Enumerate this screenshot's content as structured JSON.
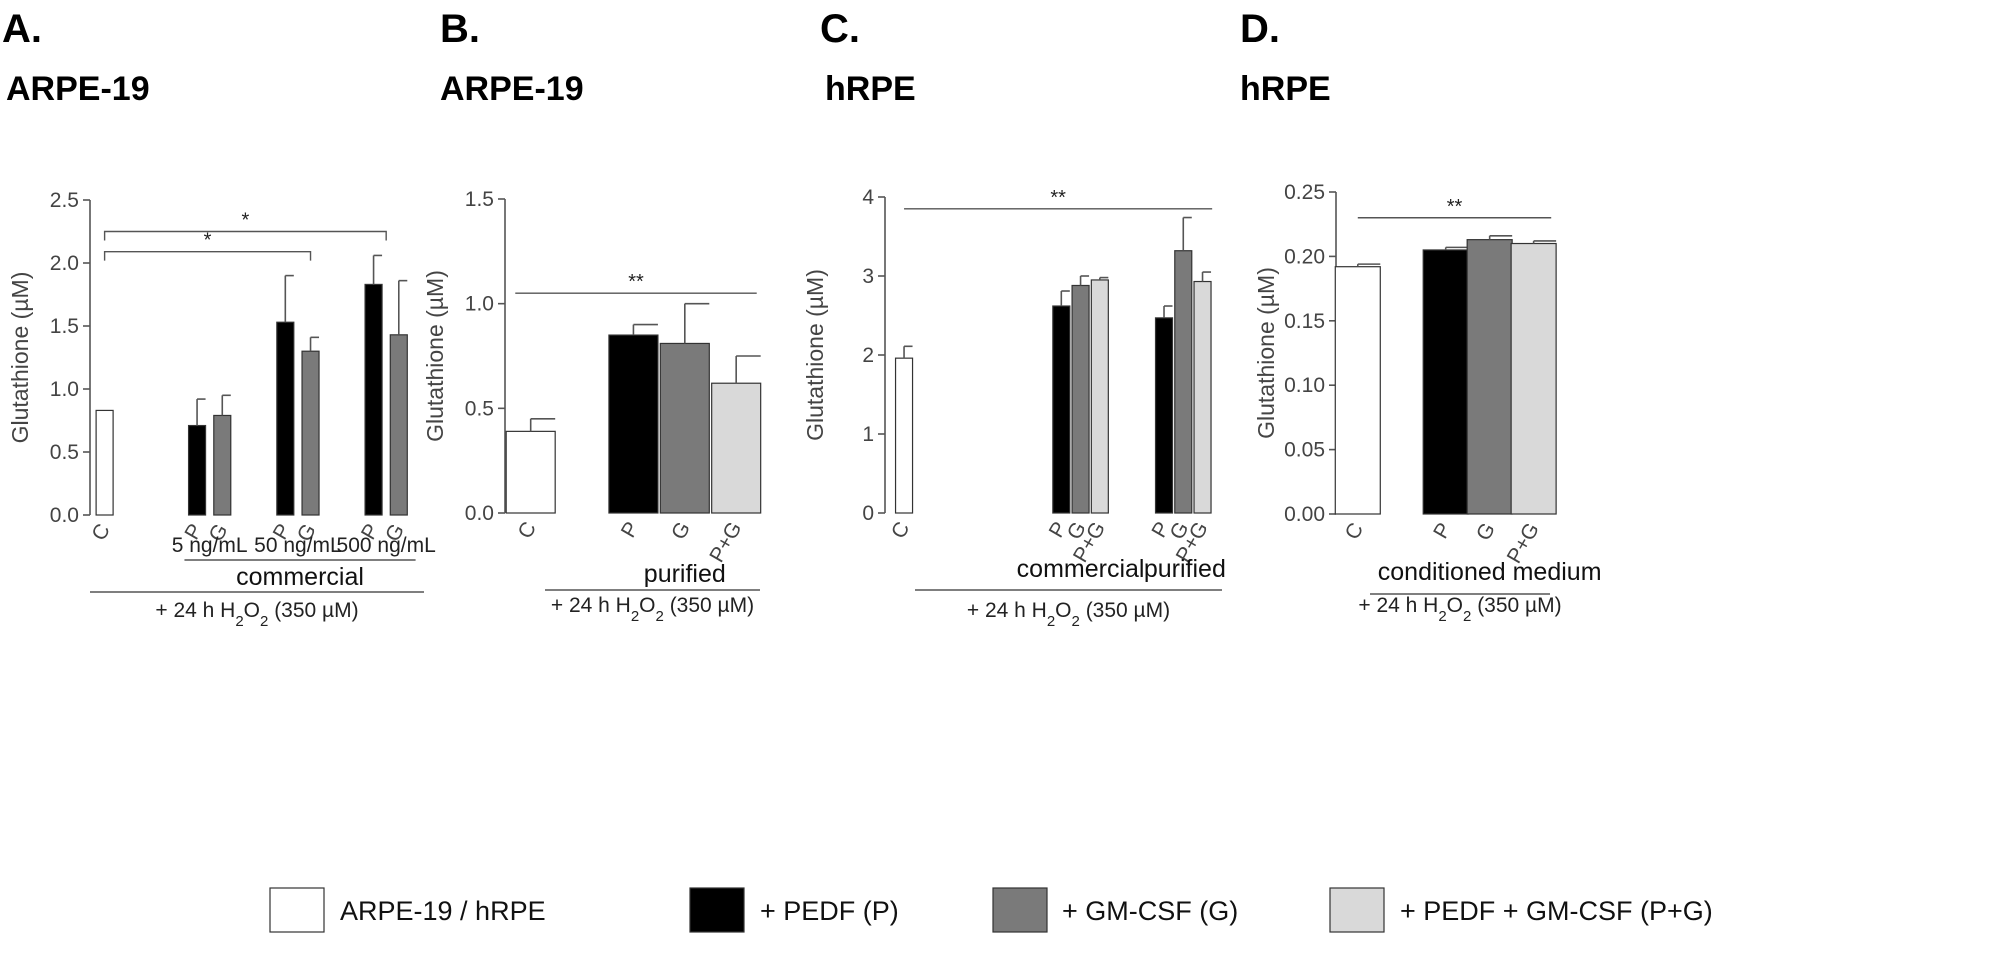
{
  "colors": {
    "control": "#ffffff",
    "pedf": "#000000",
    "gmcsf": "#7a7a7a",
    "combo": "#d9d9d9",
    "axis": "#555555",
    "error": "#555555"
  },
  "legend": [
    {
      "key": "control",
      "label": "ARPE-19 / hRPE"
    },
    {
      "key": "pedf",
      "label": "+ PEDF (P)"
    },
    {
      "key": "gmcsf",
      "label": "+ GM-CSF (G)"
    },
    {
      "key": "combo",
      "label": "+ PEDF + GM-CSF (P+G)"
    }
  ],
  "treatment_label": {
    "prefix": "+ 24 h H",
    "sub1": "2",
    "mid": "O",
    "sub2": "2",
    "suffix": " (350 µM)"
  },
  "chart_data": [
    {
      "panel": "A.",
      "title": "ARPE-19",
      "type": "bar",
      "ylabel": {
        "pre": "Glutathione (",
        "mu": "µ",
        "post": "M)"
      },
      "ylim": [
        0,
        2.5
      ],
      "yticks": [
        "0.0",
        "0.5",
        "1.0",
        "1.5",
        "2.0",
        "2.5"
      ],
      "bars": [
        {
          "label": "C",
          "value": 0.83,
          "error": 0.0,
          "color": "control",
          "x": 0
        },
        {
          "label": "P",
          "value": 0.71,
          "error": 0.21,
          "color": "pedf",
          "x": 2.2
        },
        {
          "label": "G",
          "value": 0.79,
          "error": 0.16,
          "color": "gmcsf",
          "x": 2.8
        },
        {
          "label": "P",
          "value": 1.53,
          "error": 0.37,
          "color": "pedf",
          "x": 4.3
        },
        {
          "label": "G",
          "value": 1.3,
          "error": 0.11,
          "color": "gmcsf",
          "x": 4.9
        },
        {
          "label": "P",
          "value": 1.83,
          "error": 0.23,
          "color": "pedf",
          "x": 6.4
        },
        {
          "label": "G",
          "value": 1.43,
          "error": 0.43,
          "color": "gmcsf",
          "x": 7.0
        }
      ],
      "dose_labels": [
        {
          "text": "5 ng/mL",
          "x": 2.5
        },
        {
          "text": "50 ng/mL",
          "x": 4.6
        },
        {
          "text": "500 ng/mL",
          "x": 6.7
        }
      ],
      "groups": [
        {
          "text": "commercial",
          "x0": 1.9,
          "x1": 7.4
        }
      ],
      "significance": [
        {
          "x0": 0,
          "x1": 4.9,
          "y": 2.09,
          "text": "*"
        },
        {
          "x0": 0,
          "x1": 6.7,
          "y": 2.25,
          "text": "*"
        }
      ]
    },
    {
      "panel": "B.",
      "title": "ARPE-19",
      "type": "bar",
      "ylabel": {
        "pre": "Glutathione (",
        "mu": "µ",
        "post": "M)"
      },
      "ylim": [
        0,
        1.5
      ],
      "yticks": [
        "0.0",
        "0.5",
        "1.0",
        "1.5"
      ],
      "bars": [
        {
          "label": "C",
          "value": 0.39,
          "error": 0.06,
          "color": "control",
          "x": 0
        },
        {
          "label": "P",
          "value": 0.85,
          "error": 0.05,
          "color": "pedf",
          "x": 2
        },
        {
          "label": "G",
          "value": 0.81,
          "error": 0.19,
          "color": "gmcsf",
          "x": 3
        },
        {
          "label": "P+G",
          "value": 0.62,
          "error": 0.13,
          "color": "combo",
          "x": 4
        }
      ],
      "groups": [
        {
          "text": "purified",
          "x0": 1.5,
          "x1": 4.5
        }
      ],
      "significance": [
        {
          "x0": -0.3,
          "x1": 4.4,
          "y": 1.05,
          "text": "**"
        }
      ]
    },
    {
      "panel": "C.",
      "title": "hRPE",
      "type": "bar",
      "ylabel": {
        "pre": "Glutathione (",
        "mu": "µ",
        "post": "M)"
      },
      "ylim": [
        0,
        4
      ],
      "yticks": [
        "0",
        "1",
        "2",
        "3",
        "4"
      ],
      "bars": [
        {
          "label": "C",
          "value": 1.96,
          "error": 0.15,
          "color": "control",
          "x": 0
        },
        {
          "label": "P",
          "value": 2.62,
          "error": 0.19,
          "color": "pedf",
          "x": 4.9
        },
        {
          "label": "G",
          "value": 2.88,
          "error": 0.12,
          "color": "gmcsf",
          "x": 5.5
        },
        {
          "label": "P+G",
          "value": 2.95,
          "error": 0.03,
          "color": "combo",
          "x": 6.1
        },
        {
          "label": "P",
          "value": 2.47,
          "error": 0.15,
          "color": "pedf",
          "x": 8.1
        },
        {
          "label": "G",
          "value": 3.32,
          "error": 0.42,
          "color": "gmcsf",
          "x": 8.7
        },
        {
          "label": "P+G",
          "value": 2.93,
          "error": 0.12,
          "color": "combo",
          "x": 9.3
        }
      ],
      "groups": [
        {
          "text": "commercial",
          "x0": 4.2,
          "x1": 6.8,
          "noline": true
        },
        {
          "text": "purified",
          "x0": 7.7,
          "x1": 9.8,
          "noline": true
        }
      ],
      "significance": [
        {
          "x0": 0,
          "x1": 9.6,
          "y": 3.85,
          "text": "**"
        }
      ]
    },
    {
      "panel": "D.",
      "title": "hRPE",
      "type": "bar",
      "ylabel": {
        "pre": "Glutathione (",
        "mu": "µ",
        "post": "M)"
      },
      "ylim": [
        0,
        0.25
      ],
      "yticks": [
        "0.00",
        "0.05",
        "0.10",
        "0.15",
        "0.20",
        "0.25"
      ],
      "bars": [
        {
          "label": "C",
          "value": 0.192,
          "error": 0.002,
          "color": "control",
          "x": 0
        },
        {
          "label": "P",
          "value": 0.205,
          "error": 0.002,
          "color": "pedf",
          "x": 2
        },
        {
          "label": "G",
          "value": 0.213,
          "error": 0.003,
          "color": "gmcsf",
          "x": 3
        },
        {
          "label": "P+G",
          "value": 0.21,
          "error": 0.002,
          "color": "combo",
          "x": 4
        }
      ],
      "groups": [
        {
          "text": "conditioned medium",
          "x0": 1.5,
          "x1": 4.5
        }
      ],
      "significance": [
        {
          "x0": 0,
          "x1": 4.4,
          "y": 0.23,
          "text": "**"
        }
      ]
    }
  ]
}
